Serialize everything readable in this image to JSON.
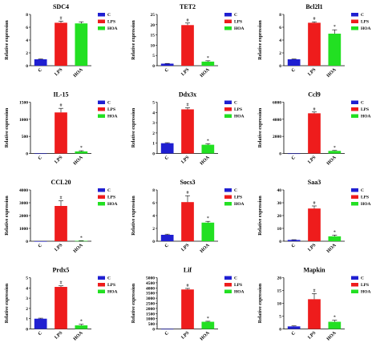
{
  "chart_data": [
    {
      "type": "bar",
      "title": "SDC4",
      "ylabel": "Relative expression",
      "categories": [
        "C",
        "LPS",
        "HOA"
      ],
      "values": [
        1.0,
        6.7,
        6.6
      ],
      "errors": [
        0.05,
        0.25,
        0.25
      ],
      "marks": [
        "",
        "#",
        ""
      ],
      "ylim": [
        0,
        8
      ],
      "yticks": [
        "0",
        "2",
        "4",
        "6",
        "8"
      ],
      "legend": [
        "C",
        "LPS",
        "HOA"
      ],
      "colors": [
        "#1f1fd1",
        "#ee1c1c",
        "#22e022"
      ]
    },
    {
      "type": "bar",
      "title": "TET2",
      "ylabel": "Relative expression",
      "categories": [
        "C",
        "LPS",
        "HOA"
      ],
      "values": [
        1.0,
        19.8,
        2.0
      ],
      "errors": [
        0.1,
        1.0,
        0.4
      ],
      "marks": [
        "",
        "#",
        "*"
      ],
      "ylim": [
        0,
        25
      ],
      "yticks": [
        "0",
        "5",
        "10",
        "15",
        "20",
        "25"
      ],
      "legend": [
        "C",
        "LPS",
        "HOA"
      ],
      "colors": [
        "#1f1fd1",
        "#ee1c1c",
        "#22e022"
      ]
    },
    {
      "type": "bar",
      "title": "Bcl2l1",
      "ylabel": "Relative expression",
      "categories": [
        "C",
        "LPS",
        "HOA"
      ],
      "values": [
        1.0,
        6.7,
        5.0
      ],
      "errors": [
        0.05,
        0.15,
        0.6
      ],
      "marks": [
        "",
        "#",
        "*"
      ],
      "ylim": [
        0,
        8
      ],
      "yticks": [
        "0",
        "2",
        "4",
        "6",
        "8"
      ],
      "legend": [
        "C",
        "LPS",
        "HOA"
      ],
      "colors": [
        "#1f1fd1",
        "#ee1c1c",
        "#22e022"
      ]
    },
    {
      "type": "bar",
      "title": "IL-15",
      "ylabel": "Relative expression",
      "categories": [
        "C",
        "LPS",
        "HOA"
      ],
      "values": [
        1,
        1200,
        60
      ],
      "errors": [
        0,
        120,
        20
      ],
      "marks": [
        "",
        "#",
        "*"
      ],
      "ylim": [
        0,
        1500
      ],
      "yticks": [
        "0",
        "500",
        "1000",
        "1500"
      ],
      "legend": [
        "C",
        "LPS",
        "HOA"
      ],
      "colors": [
        "#1f1fd1",
        "#ee1c1c",
        "#22e022"
      ]
    },
    {
      "type": "bar",
      "title": "Ddx3x",
      "ylabel": "Relative expression",
      "categories": [
        "C",
        "LPS",
        "HOA"
      ],
      "values": [
        1.0,
        4.3,
        0.85
      ],
      "errors": [
        0.05,
        0.15,
        0.1
      ],
      "marks": [
        "",
        "#",
        "*"
      ],
      "ylim": [
        0,
        5
      ],
      "yticks": [
        "0",
        "1",
        "2",
        "3",
        "4",
        "5"
      ],
      "legend": [
        "C",
        "LPS",
        "HOA"
      ],
      "colors": [
        "#1f1fd1",
        "#ee1c1c",
        "#22e022"
      ]
    },
    {
      "type": "bar",
      "title": "Ccl9",
      "ylabel": "Relative expression",
      "categories": [
        "C",
        "LPS",
        "HOA"
      ],
      "values": [
        1,
        4700,
        300
      ],
      "errors": [
        0,
        150,
        50
      ],
      "marks": [
        "",
        "#",
        "*"
      ],
      "ylim": [
        0,
        6000
      ],
      "yticks": [
        "0",
        "2000",
        "4000",
        "6000"
      ],
      "legend": [
        "C",
        "LPS",
        "HOA"
      ],
      "colors": [
        "#1f1fd1",
        "#ee1c1c",
        "#22e022"
      ]
    },
    {
      "type": "bar",
      "title": "CCL20",
      "ylabel": "Relative expression",
      "categories": [
        "C",
        "LPS",
        "HOA"
      ],
      "values": [
        1,
        2750,
        30
      ],
      "errors": [
        0,
        400,
        10
      ],
      "marks": [
        "",
        "#",
        "*"
      ],
      "ylim": [
        0,
        4000
      ],
      "yticks": [
        "0",
        "1000",
        "2000",
        "3000",
        "4000"
      ],
      "legend": [
        "C",
        "LPS",
        "HOA"
      ],
      "colors": [
        "#1f1fd1",
        "#ee1c1c",
        "#22e022"
      ]
    },
    {
      "type": "bar",
      "title": "Socs3",
      "ylabel": "Relative expression",
      "categories": [
        "C",
        "LPS",
        "HOA"
      ],
      "values": [
        1.0,
        6.1,
        2.9
      ],
      "errors": [
        0.1,
        1.0,
        0.2
      ],
      "marks": [
        "",
        "#",
        "*"
      ],
      "ylim": [
        0,
        8
      ],
      "yticks": [
        "0",
        "2",
        "4",
        "6",
        "8"
      ],
      "legend": [
        "C",
        "LPS",
        "HOA"
      ],
      "colors": [
        "#1f1fd1",
        "#ee1c1c",
        "#22e022"
      ]
    },
    {
      "type": "bar",
      "title": "Saa3",
      "ylabel": "Relative expression",
      "categories": [
        "C",
        "LPS",
        "HOA"
      ],
      "values": [
        1.0,
        25.5,
        3.8
      ],
      "errors": [
        0.2,
        2.0,
        1.0
      ],
      "marks": [
        "",
        "#",
        "*"
      ],
      "ylim": [
        0,
        40
      ],
      "yticks": [
        "0",
        "10",
        "20",
        "30",
        "40"
      ],
      "legend": [
        "C",
        "LPS",
        "HOA"
      ],
      "colors": [
        "#1f1fd1",
        "#ee1c1c",
        "#22e022"
      ]
    },
    {
      "type": "bar",
      "title": "Prdx5",
      "ylabel": "Relative expression",
      "categories": [
        "C",
        "LPS",
        "HOA"
      ],
      "values": [
        1.0,
        4.1,
        0.35
      ],
      "errors": [
        0.05,
        0.1,
        0.1
      ],
      "marks": [
        "",
        "#",
        "*"
      ],
      "ylim": [
        0,
        5
      ],
      "yticks": [
        "0",
        "1",
        "2",
        "3",
        "4",
        "5"
      ],
      "legend": [
        "C",
        "LPS",
        "HOA"
      ],
      "colors": [
        "#1f1fd1",
        "#ee1c1c",
        "#22e022"
      ]
    },
    {
      "type": "bar",
      "title": "Lif",
      "ylabel": "Relative expression",
      "categories": [
        "C",
        "LPS",
        "HOA"
      ],
      "values": [
        1,
        3850,
        700
      ],
      "errors": [
        0,
        100,
        50
      ],
      "marks": [
        "",
        "#",
        "*"
      ],
      "ylim": [
        0,
        5000
      ],
      "yticks": [
        "0",
        "500",
        "1000",
        "1500",
        "2000",
        "2500",
        "3000",
        "3500",
        "4000",
        "4500",
        "5000"
      ],
      "legend": [
        "C",
        "LPS",
        "HOA"
      ],
      "colors": [
        "#1f1fd1",
        "#ee1c1c",
        "#22e022"
      ]
    },
    {
      "type": "bar",
      "title": "Mapkin",
      "ylabel": "Relative expression",
      "categories": [
        "C",
        "LPS",
        "HOA"
      ],
      "values": [
        1.0,
        11.6,
        2.8
      ],
      "errors": [
        0.2,
        2.2,
        0.6
      ],
      "marks": [
        "",
        "#",
        "*"
      ],
      "ylim": [
        0,
        20
      ],
      "yticks": [
        "0",
        "5",
        "10",
        "15",
        "20"
      ],
      "legend": [
        "C",
        "LPS",
        "HOA"
      ],
      "colors": [
        "#1f1fd1",
        "#ee1c1c",
        "#22e022"
      ]
    }
  ]
}
